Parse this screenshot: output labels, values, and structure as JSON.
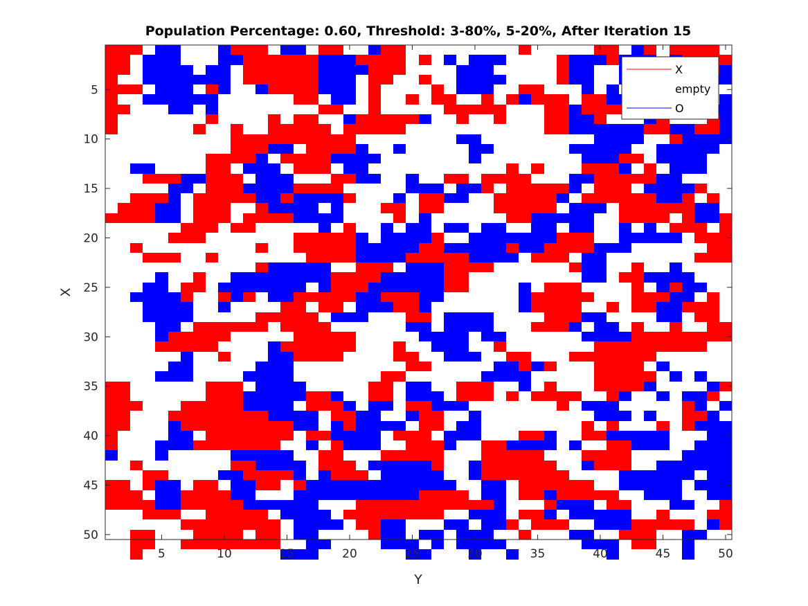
{
  "chart_data": {
    "type": "heatmap",
    "title": "Population Percentage: 0.60, Threshold: 3-80%, 5-20%, After Iteration 15",
    "xlabel": "Y",
    "ylabel": "X",
    "xlim": [
      0.5,
      50.5
    ],
    "ylim": [
      0.5,
      50.5
    ],
    "y_direction": "reverse",
    "x_ticks": [
      5,
      10,
      15,
      20,
      25,
      30,
      35,
      40,
      45,
      50
    ],
    "y_ticks": [
      5,
      10,
      15,
      20,
      25,
      30,
      35,
      40,
      45,
      50
    ],
    "grid": false,
    "legend": {
      "position": "top-right",
      "entries": [
        {
          "label": "X",
          "color": "#ff0000",
          "value": "R"
        },
        {
          "label": "empty",
          "color": "#ffffff",
          "value": "."
        },
        {
          "label": "O",
          "color": "#0000ff",
          "value": "B"
        }
      ]
    },
    "colors": {
      "R": "#ff0000",
      "B": "#0000ff",
      ".": "#ffffff"
    },
    "rows": [
      "RRR.BB...BRRR.BB.RR..BRR.........R.....RR.BR.RRRR.",
      "RR.BBB...BBRRRRRRBBBRRRR.R.B.BBB....RBBBRBBB.BRRRR",
      "RR.BBBB.BB.RRRRRRBBBBRRR....BBB.....RBB..BB....RRB",
      "R..BBBBBBB.RRRRRRBBB.RR..R..BBBB....RBB..B..R...BB",
      "RRR.BBB.RB..BRRRRBBB.R....R.BBB..RR...B.B....R....",
      "R..BBBBBB......RR.BB.R..R.RR..R.RBRRR.RRBB....R..B",
      "RR...BB.B........RR..R.....RRRRR...RRBRRRRR.B..BBB",
      "R.......R....R.RR..BRRRRRB..R..R...RRBBR...BR...RB",
      "R......R..R..RRRRR.RRRRR...........RRBBBBBBRRBBRRB",
      "..........RRRRRRRRRR........BB.........BBBB..RBBBB",
      "..........RRRBB.RRRRB..B.....BB......BBBBB..BBBBB.",
      "........RRRRB.RRRRBBBB.......B........BBBRR.BBBB..",
      "..BB....RR.BBB.RRR.BB...........R.R...RRRB.R.BBB..",
      "...RRRBBRRR.BBB...RRBB..B..RR.RRRR...BBRRRRRBB....",
      ".....BB.RRRBBBBRRRR.....BBB.BBR.RRRRRB.RRR.BBBBR..",
      "..RRRB.RRRRRBBRBBBBR...B.RRBB..RRRRRB.RRRRRRBBR.R.",
      ".RRRBB.RRR..RBBBB.B...RR.RR....RRRRR.BBB.RRRRRRBB.",
      "RRRRBB.RRR.RRRRBBBB....R.B......RRBBBBB..RRRR.RBBR",
      "......RRR.RR.....B.R..B.BB.BB.BB..BB.BB..B.B.RRR.R",
      ".....RRR.......RRRRRB.BBBBR..BBBBBBBRRR..BBBBB.RRRR",
      "..R.........R..RRRRRBBBBBRRBBBBBRBBRRRRBBB......RR",
      "...RRR..R.......RRRRBBBBRRRRRBBBB.RRR.BB.......RRR",
      "............RBBBBB..RRR.BBBRRRR......RBB..R..B....",
      "....B..R..BBBBBBBBRRRRBBBBBRR.........BB.RRBBBB...",
      "...BB.RR.BBBBBBB.BRRRBBBBBBRR....B.RRR....R.BRBB..",
      "..BBBBR..RBR.BBRRRRRBBRRRBB......BRRRRR...RRRBB.R.",
      "...BBBB..B....RR.RR.BBBRRB.......BRRRR..R.RRBBRRR.",
      "...BBBB.....RRRRR.BBB...RR.BBBB....RRRBB....BB.RR.",
      "....BB.RRRRRR.RRRR......BB.BBBB...RRRB.BB.R..R..RR",
      "....BRRRRR.....RRRRR.....BBBB.BB......BBBBRRRRRRRR",
      "....RRRRR....BRRRRRR...R..BBB..R.......RRRRRRRRR..",
      "......B..R...BBRRRR....RR..BBB..RR...RRRRRRR......",
      ".....BB.....BBB.........RR.....BBRBR...RRRR.B.....",
      "....BBB....BBBB.......RR......BBBB.....RRRRR.B.B..",
      "RR......RRR.BBBB.....RR.BB..RRR..B.R...RRRRB....BR",
      "RR......RRRBBBBBRRB..RR.BBB.RRR.R.RRRR..RB..B.BBR.",
      "RRR...RRRRRBBBB.RRRB.BB.RRBBB.......R.BBB.....RB.B",
      "RR...RRRRRRRRBBBB.RRBB..BRR..B.........BBB.B..RRB.",
      "RR...BRRRRRRRRRBB.BRBBBB.RR.BB........R.R...R.RBBB",
      "R....BB.RRRRRRR.RRBBBB.RRR.BBB...RRB..RRBBBBB...BB",
      "R...BBBRRRRRRR..B.RBBB..RRRB..RRBBBB.B..RRBBB..BBB",
      "B...B.....BBBBB..RR...RRRRR...RRRRR...RRRR....BBBB",
      "..R.......RRBBBB.RRR.BBBBBR..BRRRRRR..BRRR..BBBBBB",
      "...RR....BBRRRRB.BRRR.BBBBB..BRRRRRRR....BBBBBB.BB",
      "RR.RBB.RR.BBRR.RBBBBBBBBBBBB..BB.RRRRRR..BBBBB.BBB",
      "RRR.BBRRRRBB...BBBBBBBBBBRRRR.BB.RRBRRRRR..BBB..BB",
      "RRRRBBRRRRRBBBBBB...RRRRRRRRRRRB...RBBB.RR...BB..R",
      "...RRR..RRRRR.BBBB.RRRRRRRR..BBB.RRB.BBBBB..R...RR",
      "......RRRRRRRR.BBBB.RRBB...BB.BBR.RRR..BBBRRRRR.BR",
      "..RR...RRRR.RR.BB....RBB.BB.BBB..R...BB..RRR..BB..",
      "..RR..RRRRRRRR..BB....BBB.B.BBBB......BBB.RR..B...",
      "..R...........BBB.......BB...B..B.......B.....B..."
    ]
  }
}
